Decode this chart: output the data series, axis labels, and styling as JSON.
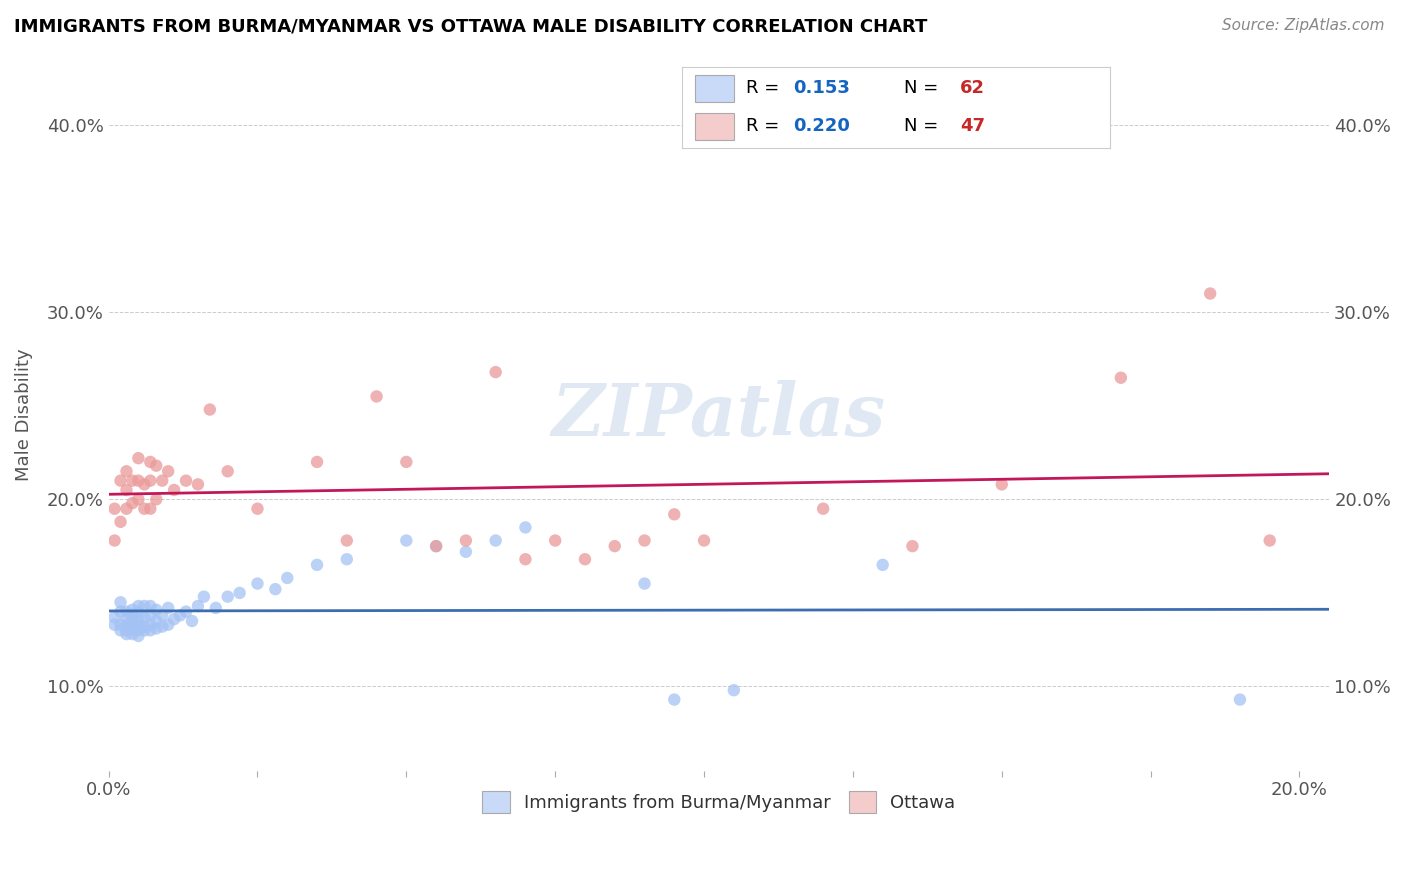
{
  "title": "IMMIGRANTS FROM BURMA/MYANMAR VS OTTAWA MALE DISABILITY CORRELATION CHART",
  "source": "Source: ZipAtlas.com",
  "ylabel": "Male Disability",
  "xlim": [
    0.0,
    0.205
  ],
  "ylim": [
    0.055,
    0.435
  ],
  "blue_R": "0.153",
  "blue_N": "62",
  "pink_R": "0.220",
  "pink_N": "47",
  "blue_color": "#a4c2f4",
  "pink_color": "#ea9999",
  "blue_line_color": "#3c6daf",
  "pink_line_color": "#c2185b",
  "legend_blue_face": "#c9daf8",
  "legend_pink_face": "#f4cccc",
  "watermark": "ZIPatlas",
  "blue_scatter_x": [
    0.001,
    0.001,
    0.002,
    0.002,
    0.002,
    0.002,
    0.003,
    0.003,
    0.003,
    0.003,
    0.003,
    0.004,
    0.004,
    0.004,
    0.004,
    0.004,
    0.004,
    0.005,
    0.005,
    0.005,
    0.005,
    0.005,
    0.005,
    0.006,
    0.006,
    0.006,
    0.006,
    0.007,
    0.007,
    0.007,
    0.007,
    0.008,
    0.008,
    0.008,
    0.009,
    0.009,
    0.01,
    0.01,
    0.011,
    0.012,
    0.013,
    0.014,
    0.015,
    0.016,
    0.018,
    0.02,
    0.022,
    0.025,
    0.028,
    0.03,
    0.035,
    0.04,
    0.05,
    0.055,
    0.06,
    0.065,
    0.07,
    0.09,
    0.095,
    0.105,
    0.13,
    0.19
  ],
  "blue_scatter_y": [
    0.133,
    0.137,
    0.13,
    0.133,
    0.14,
    0.145,
    0.128,
    0.13,
    0.133,
    0.136,
    0.14,
    0.128,
    0.131,
    0.133,
    0.135,
    0.138,
    0.141,
    0.127,
    0.13,
    0.133,
    0.136,
    0.14,
    0.143,
    0.13,
    0.132,
    0.137,
    0.143,
    0.13,
    0.133,
    0.138,
    0.143,
    0.131,
    0.135,
    0.141,
    0.132,
    0.138,
    0.133,
    0.142,
    0.136,
    0.138,
    0.14,
    0.135,
    0.143,
    0.148,
    0.142,
    0.148,
    0.15,
    0.155,
    0.152,
    0.158,
    0.165,
    0.168,
    0.178,
    0.175,
    0.172,
    0.178,
    0.185,
    0.155,
    0.093,
    0.098,
    0.165,
    0.093
  ],
  "pink_scatter_x": [
    0.001,
    0.001,
    0.002,
    0.002,
    0.003,
    0.003,
    0.003,
    0.004,
    0.004,
    0.005,
    0.005,
    0.005,
    0.006,
    0.006,
    0.007,
    0.007,
    0.007,
    0.008,
    0.008,
    0.009,
    0.01,
    0.011,
    0.013,
    0.015,
    0.017,
    0.02,
    0.025,
    0.035,
    0.04,
    0.045,
    0.05,
    0.055,
    0.06,
    0.065,
    0.07,
    0.075,
    0.08,
    0.085,
    0.09,
    0.095,
    0.1,
    0.12,
    0.135,
    0.15,
    0.17,
    0.185,
    0.195
  ],
  "pink_scatter_y": [
    0.178,
    0.195,
    0.188,
    0.21,
    0.195,
    0.205,
    0.215,
    0.198,
    0.21,
    0.2,
    0.21,
    0.222,
    0.195,
    0.208,
    0.195,
    0.21,
    0.22,
    0.2,
    0.218,
    0.21,
    0.215,
    0.205,
    0.21,
    0.208,
    0.248,
    0.215,
    0.195,
    0.22,
    0.178,
    0.255,
    0.22,
    0.175,
    0.178,
    0.268,
    0.168,
    0.178,
    0.168,
    0.175,
    0.178,
    0.192,
    0.178,
    0.195,
    0.175,
    0.208,
    0.265,
    0.31,
    0.178
  ]
}
